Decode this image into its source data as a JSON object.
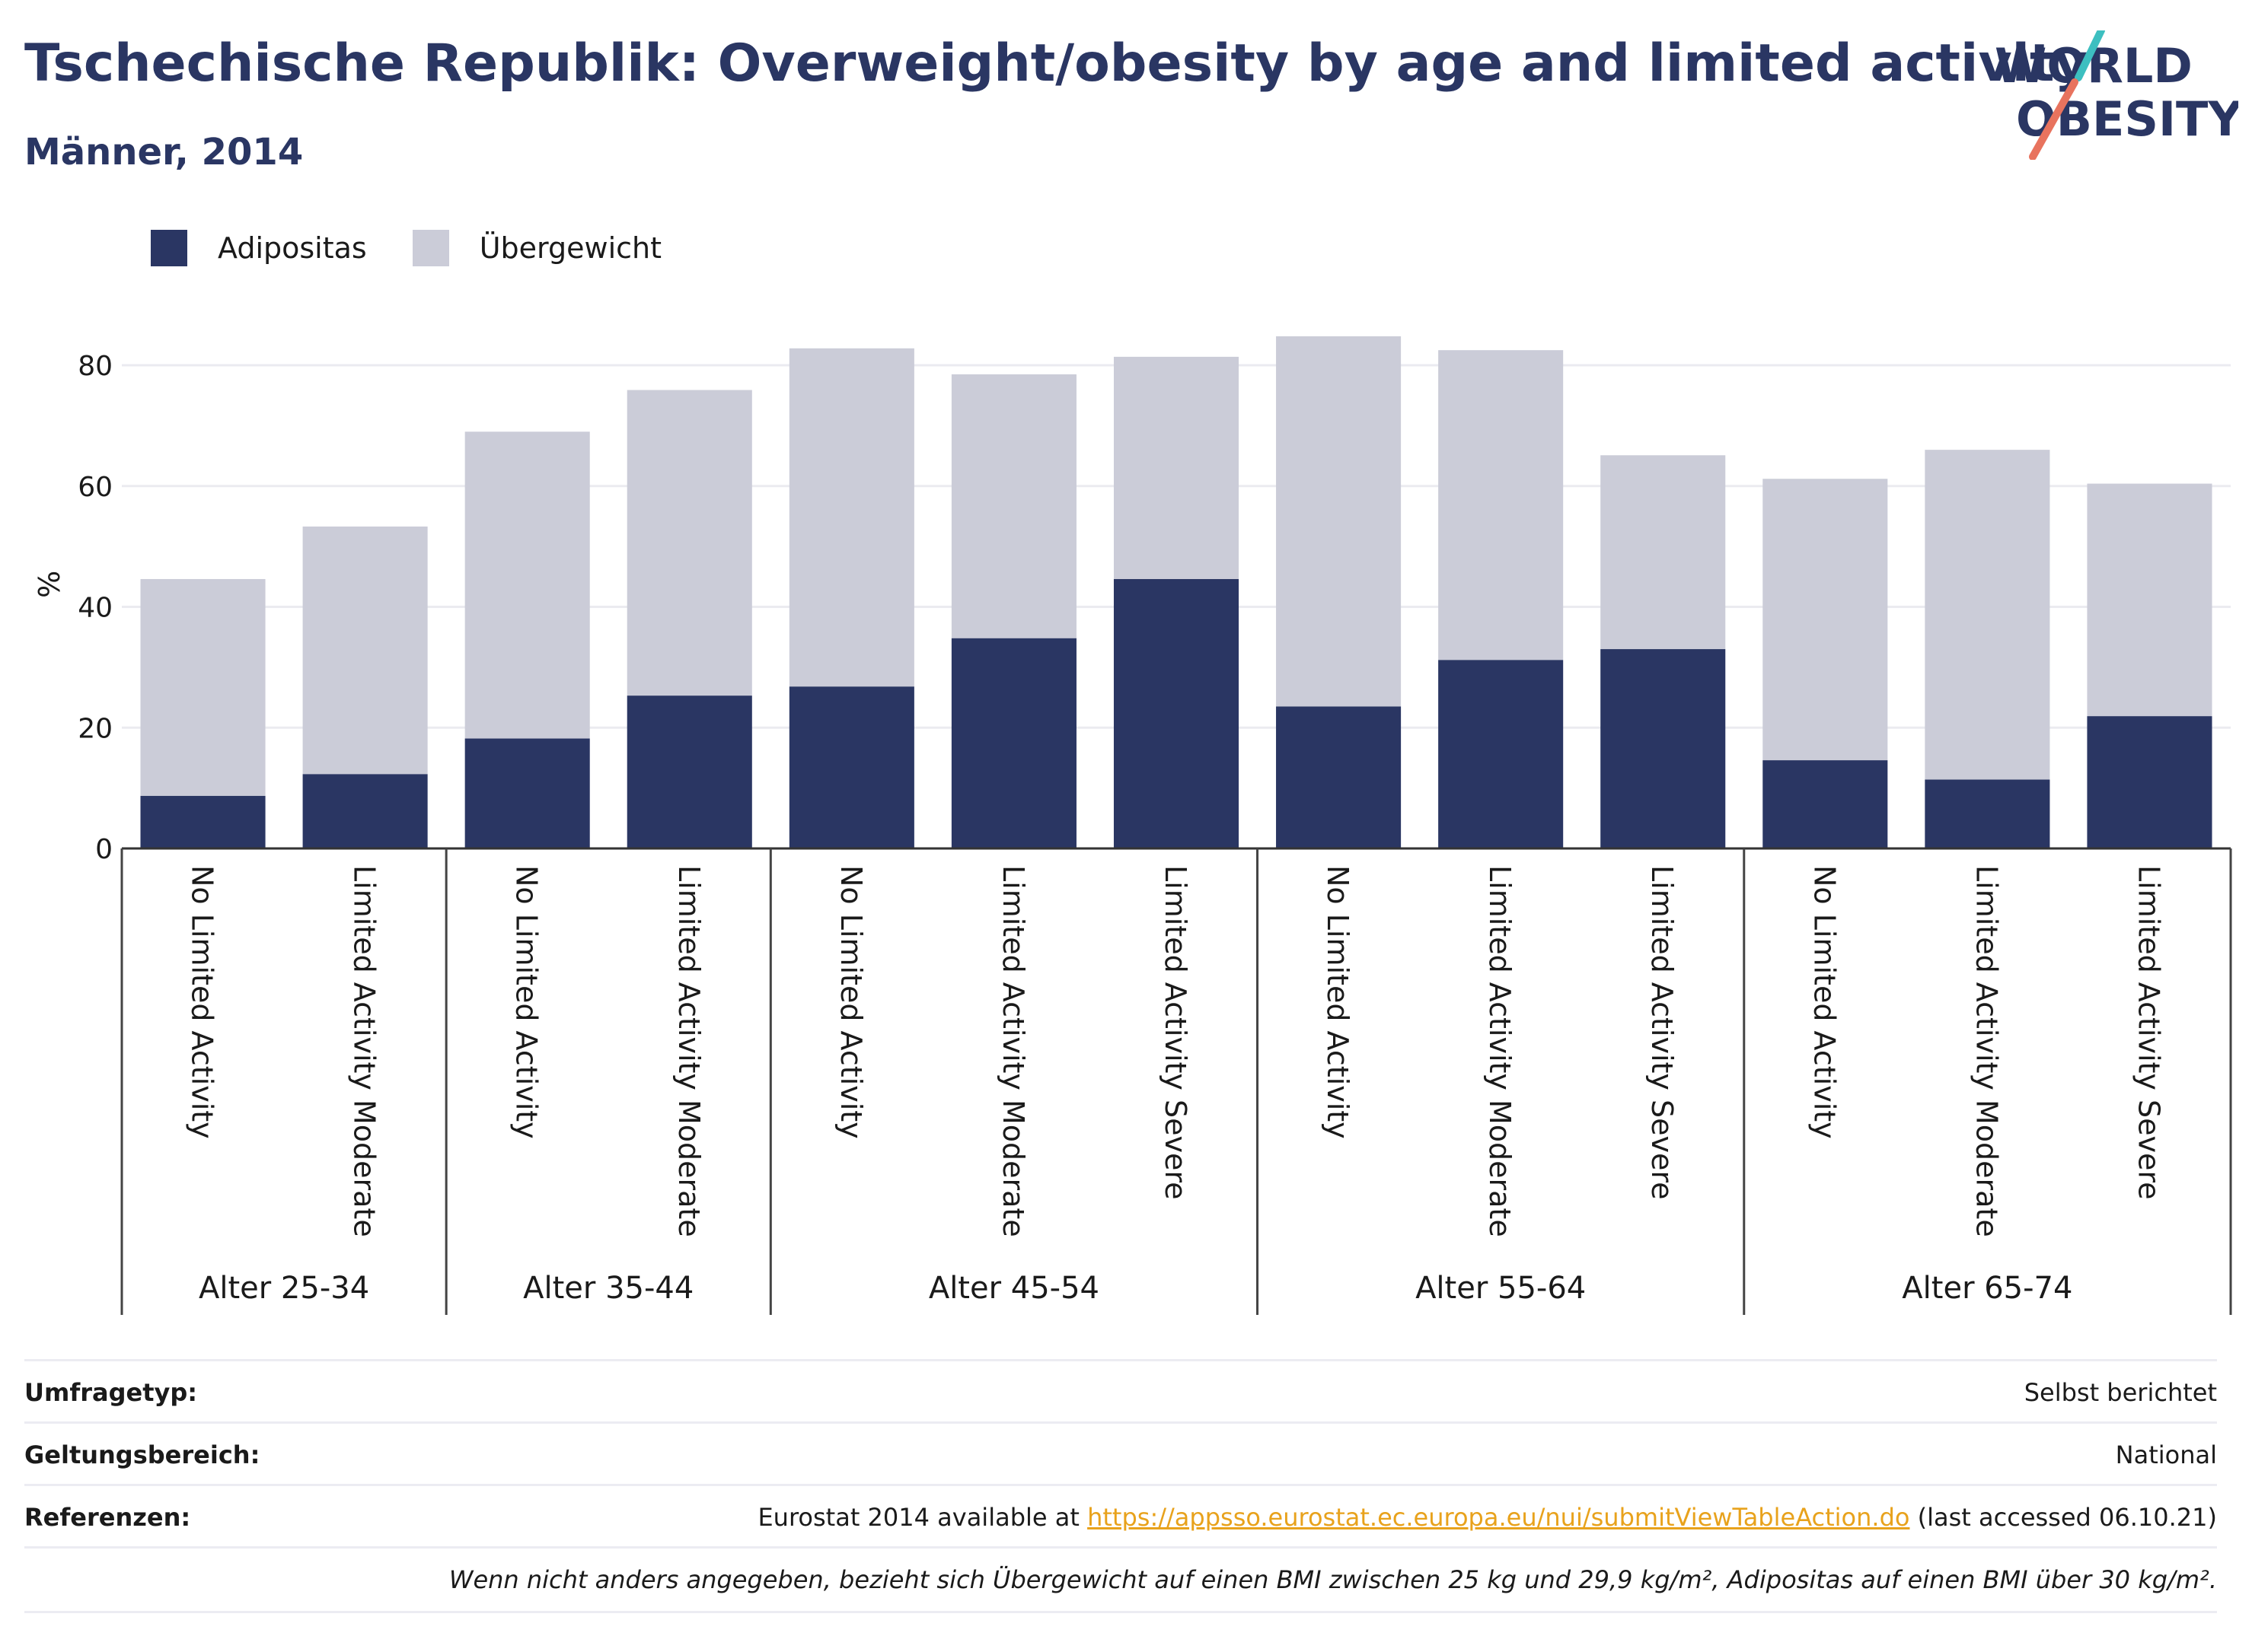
{
  "header": {
    "title": "Tschechische Republik: Overweight/obesity by age and limited activity",
    "subtitle": "Männer, 2014",
    "logo_line1": "WORLD",
    "logo_line2": "OBESITY"
  },
  "colors": {
    "obesity": "#2a3663",
    "overweight": "#cbccd8",
    "text": "#1a1a1a",
    "title": "#2a3663",
    "logo_teal": "#3dbfc0",
    "logo_coral": "#e8735e",
    "link": "#e8a21c"
  },
  "chart_data": {
    "type": "bar",
    "stacked": true,
    "ylabel": "%",
    "ylim": [
      0,
      90
    ],
    "yticks": [
      0,
      20,
      40,
      60,
      80
    ],
    "grid": true,
    "legend_position": "top-left",
    "groups": [
      {
        "label": "Alter 25-34",
        "categories": [
          "No Limited Activity",
          "Limited Activity Moderate"
        ]
      },
      {
        "label": "Alter 35-44",
        "categories": [
          "No Limited Activity",
          "Limited Activity Moderate"
        ]
      },
      {
        "label": "Alter 45-54",
        "categories": [
          "No Limited Activity",
          "Limited Activity Moderate",
          "Limited Activity Severe"
        ]
      },
      {
        "label": "Alter 55-64",
        "categories": [
          "No Limited Activity",
          "Limited Activity Moderate",
          "Limited Activity Severe"
        ]
      },
      {
        "label": "Alter 65-74",
        "categories": [
          "No Limited Activity",
          "Limited Activity Moderate",
          "Limited Activity Severe"
        ]
      }
    ],
    "series": [
      {
        "name": "Adipositas",
        "values": [
          8.7,
          12.3,
          18.2,
          25.3,
          26.8,
          34.8,
          44.6,
          23.5,
          31.2,
          33.0,
          14.6,
          11.4,
          21.9
        ]
      },
      {
        "name": "Übergewicht",
        "values": [
          35.9,
          41.0,
          50.8,
          50.6,
          56.0,
          43.7,
          36.8,
          61.3,
          51.3,
          32.1,
          46.6,
          54.6,
          38.5
        ]
      }
    ]
  },
  "info": [
    {
      "label": "Umfragetyp:",
      "value": "Selbst berichtet"
    },
    {
      "label": "Geltungsbereich:",
      "value": "National"
    },
    {
      "label": "Referenzen:",
      "value_prefix": "Eurostat 2014 available at ",
      "link": "https://appsso.eurostat.ec.europa.eu/nui/submitViewTableAction.do",
      "value_suffix": " (last accessed 06.10.21)"
    }
  ],
  "footnote": "Wenn nicht anders angegeben, bezieht sich Übergewicht auf einen BMI zwischen 25 kg und 29,9 kg/m², Adipositas auf einen BMI über 30 kg/m²."
}
